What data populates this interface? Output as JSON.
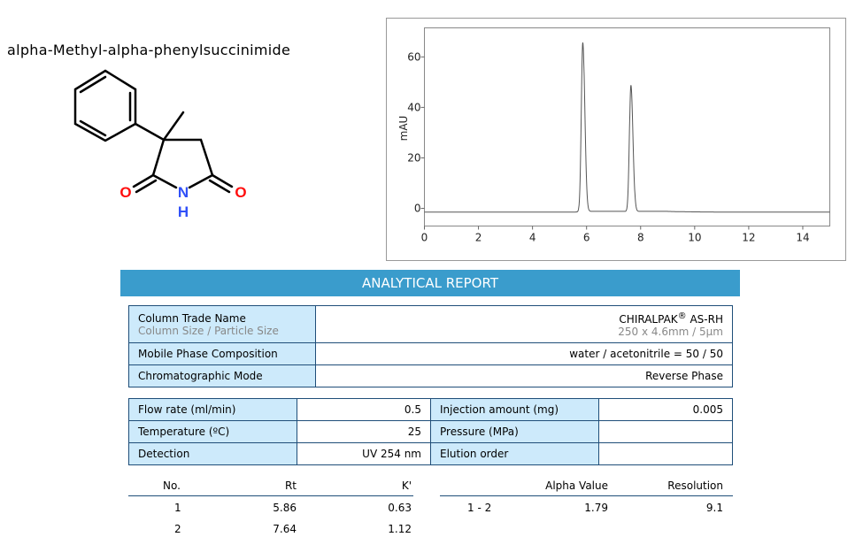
{
  "compound_name": "alpha-Methyl-alpha-phenylsuccinimide",
  "structure_atoms": {
    "o_left": "O",
    "o_right": "O",
    "n": "N",
    "h": "H"
  },
  "banner": "ANALYTICAL REPORT",
  "column": {
    "label": "Column Trade Name",
    "sub_label": "Column Size / Particle Size",
    "value": "CHIRALPAK",
    "reg": "®",
    "value_suffix": " AS-RH",
    "sub_value": "250 x 4.6mm / 5µm"
  },
  "mobile_phase": {
    "label": "Mobile Phase Composition",
    "value": "water / acetonitrile = 50 / 50"
  },
  "mode": {
    "label": "Chromatographic Mode",
    "value": "Reverse Phase"
  },
  "conditions": [
    {
      "label": "Flow rate (ml/min)",
      "value": "0.5",
      "label2": "Injection amount (mg)",
      "value2": "0.005"
    },
    {
      "label": "Temperature (ºC)",
      "value": "25",
      "label2": "Pressure (MPa)",
      "value2": ""
    },
    {
      "label": "Detection",
      "value": "UV 254 nm",
      "label2": "Elution order",
      "value2": ""
    }
  ],
  "results": {
    "headers": [
      "No.",
      "Rt",
      "K'"
    ],
    "rows": [
      [
        "1",
        "5.86",
        "0.63"
      ],
      [
        "2",
        "7.64",
        "1.12"
      ]
    ],
    "headers2": [
      "",
      "Alpha Value",
      "Resolution"
    ],
    "rows2": [
      [
        "1 - 2",
        "1.79",
        "9.1"
      ]
    ]
  },
  "chart_data": {
    "type": "line",
    "title": "",
    "xlabel": "",
    "ylabel": "mAU",
    "xlim": [
      0,
      15
    ],
    "ylim": [
      -7,
      71.5
    ],
    "xticks": [
      "0",
      "2",
      "4",
      "6",
      "8",
      "10",
      "12",
      "14"
    ],
    "yticks": [
      "0",
      "20",
      "40",
      "60"
    ],
    "grid": false,
    "baseline": -1.5,
    "peaks": [
      {
        "rt": 5.86,
        "height": 65.5
      },
      {
        "rt": 7.64,
        "height": 48.5
      }
    ],
    "line_color": "#555555"
  }
}
